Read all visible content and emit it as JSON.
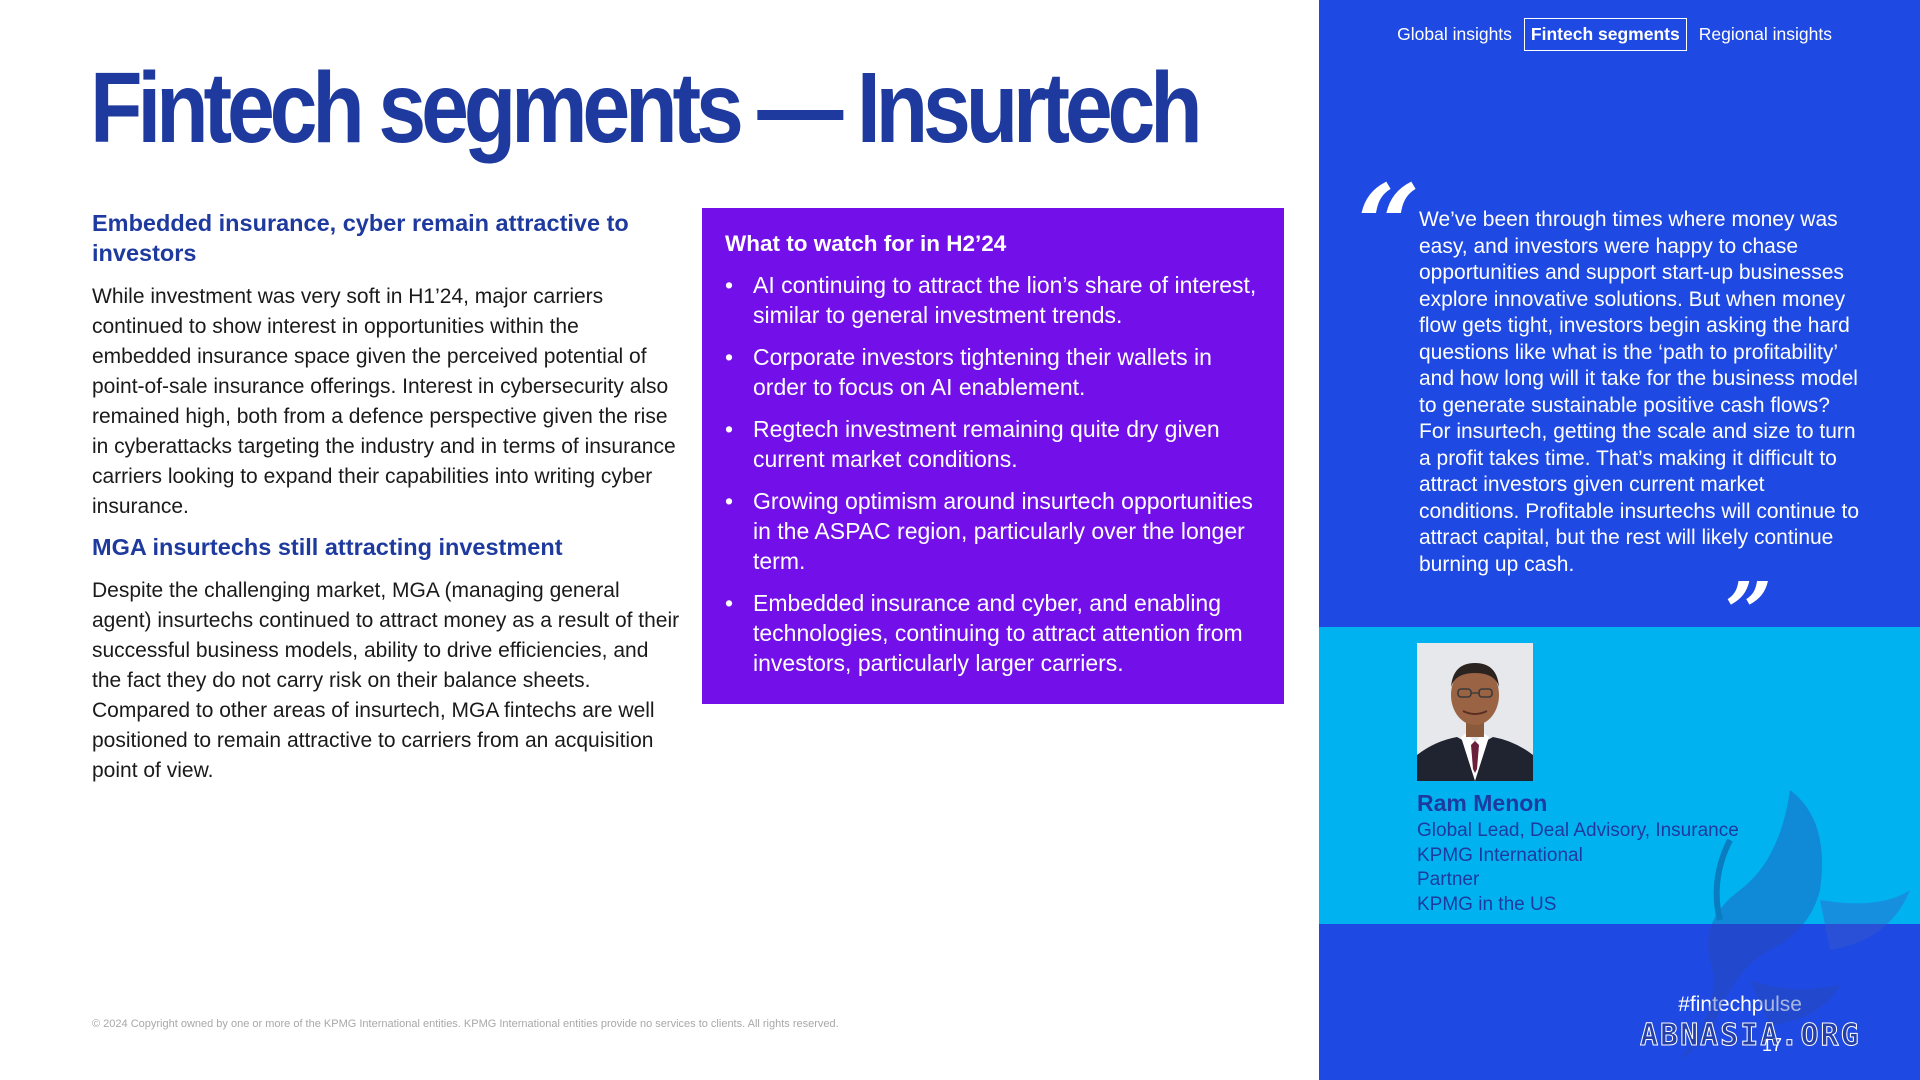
{
  "title": "Fintech segments — Insurtech",
  "nav": {
    "tabs": [
      {
        "label": "Global insights"
      },
      {
        "label": "Fintech segments"
      },
      {
        "label": "Regional insights"
      }
    ]
  },
  "left": {
    "section1_heading": "Embedded insurance, cyber remain attractive to investors",
    "section1_body": "While investment was very soft in H1’24, major carriers continued to show interest in opportunities within the embedded insurance space given the perceived potential of point-of-sale insurance offerings. Interest in cybersecurity also remained high, both from a defence perspective given the rise in cyberattacks targeting the industry and in terms of insurance carriers looking to expand their capabilities into writing cyber insurance.",
    "section2_heading": "MGA insurtechs still attracting investment",
    "section2_body": "Despite the challenging market, MGA (managing general agent) insurtechs continued to attract money as a result of their successful business models, ability to drive efficiencies, and the fact they do not carry risk on their balance sheets. Compared to other areas of insurtech, MGA fintechs are well positioned to remain attractive to carriers from an acquisition point of view."
  },
  "watch": {
    "heading": "What to watch for in H2’24",
    "bullet_symbol": "•",
    "items": [
      "AI continuing to attract the lion’s share of interest, similar to general investment trends.",
      "Corporate investors tightening their wallets in order to focus on AI enablement.",
      "Regtech investment remaining quite dry given current market conditions.",
      "Growing optimism around insurtech opportunities in the ASPAC region, particularly over the longer term.",
      "Embedded insurance and cyber, and enabling technologies, continuing to attract attention from investors, particularly larger carriers."
    ]
  },
  "quote": {
    "open_mark": "“",
    "close_mark": "”",
    "text": "We’ve been through times where money was easy, and investors were happy to chase opportunities and support start-up businesses explore innovative solutions. But when money flow gets tight, investors begin asking the hard questions like what is the ‘path to profitability’ and how long will it take for the business model to generate sustainable positive cash flows? For insurtech, getting the scale and size to turn a profit takes time. That’s making it difficult to attract investors given current market conditions. Profitable insurtechs will continue to attract capital, but the rest will likely continue burning up cash."
  },
  "person": {
    "name": "Ram Menon",
    "lines": [
      "Global Lead, Deal Advisory, Insurance",
      "KPMG International",
      "Partner",
      "KPMG in the US"
    ]
  },
  "footer": {
    "hashtag": "#fintechpulse",
    "page_number": "17",
    "copyright": "© 2024 Copyright owned by one or more of the KPMG International entities. KPMG International entities provide no services to clients. All rights reserved.",
    "watermark": "ABNASIA.ORG"
  },
  "colors": {
    "title_blue": "#1e3a9e",
    "panel_blue": "#1e49e2",
    "band_cyan": "#00b3f0",
    "watch_purple": "#7310ea"
  }
}
